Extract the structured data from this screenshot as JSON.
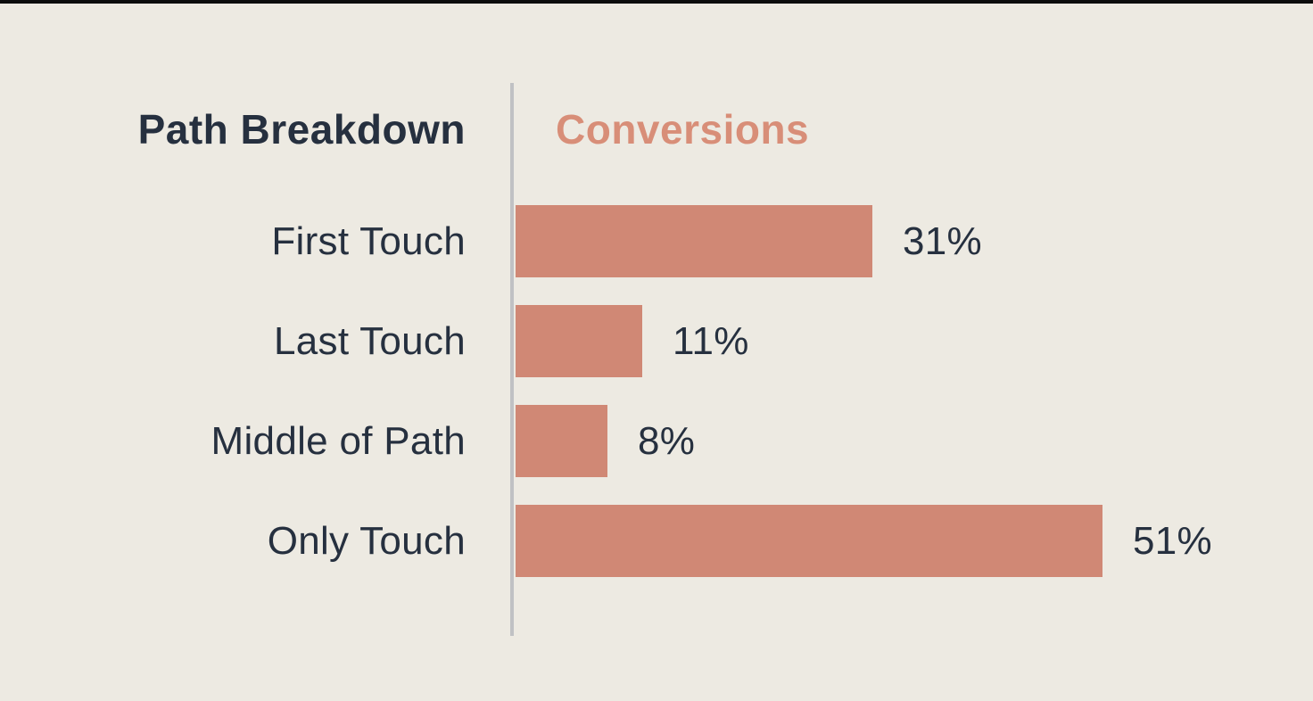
{
  "page": {
    "background_color": "#EDEAE2",
    "top_bar_color": "#0D0D0D"
  },
  "chart_data": {
    "type": "bar",
    "orientation": "horizontal",
    "title": "Path Breakdown",
    "series_label": "Conversions",
    "categories": [
      "First Touch",
      "Last Touch",
      "Middle of Path",
      "Only Touch"
    ],
    "values": [
      31,
      11,
      8,
      51
    ],
    "value_labels": [
      "31%",
      "11%",
      "8%",
      "51%"
    ],
    "unit": "percent",
    "xlim": [
      0,
      55
    ],
    "grid": false,
    "legend": false,
    "colors": {
      "bar": "#D08875",
      "series_label_text": "#D88E78",
      "text": "#26303F",
      "divider": "#C0C1C4"
    }
  }
}
